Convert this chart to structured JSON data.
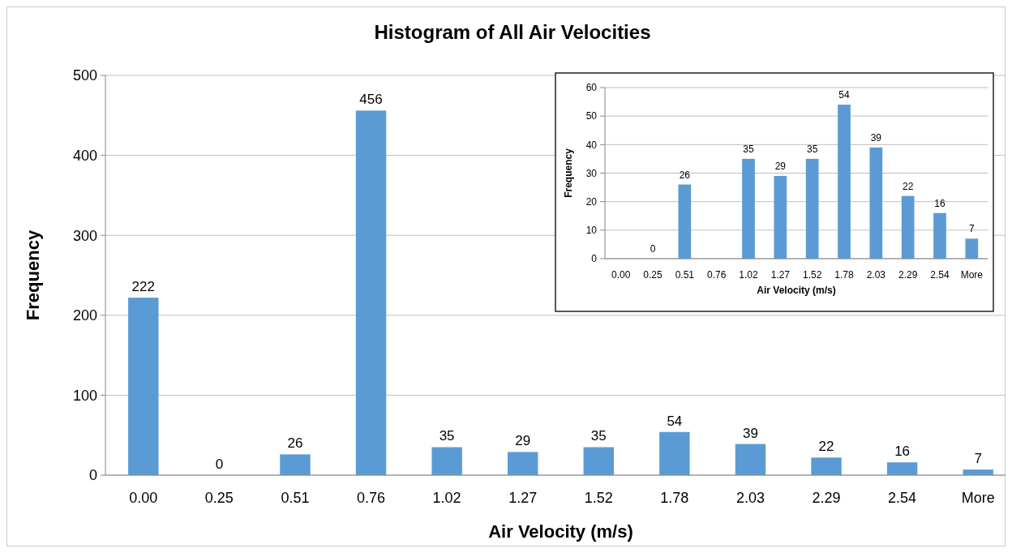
{
  "chart_data": [
    {
      "type": "bar",
      "title": "Histogram of All Air Velocities",
      "xlabel": "Air Velocity (m/s)",
      "ylabel": "Frequency",
      "categories": [
        "0.00",
        "0.25",
        "0.51",
        "0.76",
        "1.02",
        "1.27",
        "1.52",
        "1.78",
        "2.03",
        "2.29",
        "2.54",
        "More"
      ],
      "values": [
        222,
        0,
        26,
        456,
        35,
        29,
        35,
        54,
        39,
        22,
        16,
        7
      ],
      "color": "#5b9bd5",
      "ylim": [
        0,
        500
      ],
      "yticks": [
        0,
        100,
        200,
        300,
        400,
        500
      ],
      "grid": "y",
      "data_labels": true
    },
    {
      "type": "bar",
      "xlabel": "Air Velocity (m/s)",
      "ylabel": "Frequency",
      "categories": [
        "0.00",
        "0.25",
        "0.51",
        "0.76",
        "1.02",
        "1.27",
        "1.52",
        "1.78",
        "2.03",
        "2.29",
        "2.54",
        "More"
      ],
      "values": [
        null,
        0,
        26,
        null,
        35,
        29,
        35,
        54,
        39,
        22,
        16,
        7
      ],
      "color": "#5b9bd5",
      "ylim": [
        0,
        60
      ],
      "yticks": [
        0,
        10,
        20,
        30,
        40,
        50,
        60
      ],
      "grid": "y",
      "data_labels": true
    }
  ]
}
